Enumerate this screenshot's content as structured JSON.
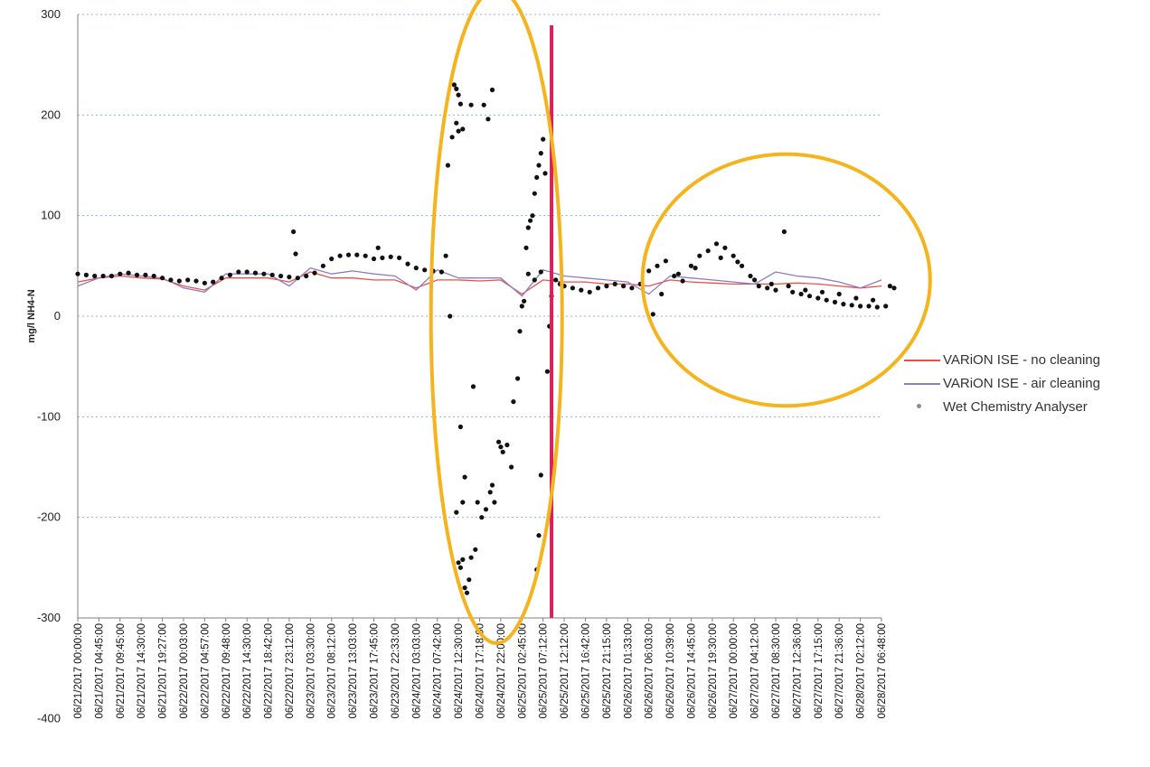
{
  "chart_data": {
    "type": "line",
    "title": "",
    "xlabel": "",
    "ylabel": "mg/l NH4-N",
    "ylim": [
      -400,
      300
    ],
    "plot_ylim": [
      -300,
      300
    ],
    "yticks": [
      300,
      200,
      100,
      0,
      -100,
      -200,
      -300,
      -400
    ],
    "grid": true,
    "legend_position": "right",
    "categories": [
      "06/21/2017 00:00:00",
      "06/21/2017 04:45:00",
      "06/21/2017 09:45:00",
      "06/21/2017 14:30:00",
      "06/21/2017 19:27:00",
      "06/22/2017 00:03:00",
      "06/22/2017 04:57:00",
      "06/22/2017 09:48:00",
      "06/22/2017 14:30:00",
      "06/22/2017 18:42:00",
      "06/22/2017 23:12:00",
      "06/23/2017 03:30:00",
      "06/23/2017 08:12:00",
      "06/23/2017 13:03:00",
      "06/23/2017 17:45:00",
      "06/23/2017 22:33:00",
      "06/24/2017 03:03:00",
      "06/24/2017 07:42:00",
      "06/24/2017 12:30:00",
      "06/24/2017 17:18:00",
      "06/24/2017 22:00:00",
      "06/25/2017 02:45:00",
      "06/25/2017 07:12:00",
      "06/25/2017 12:12:00",
      "06/25/2017 16:42:00",
      "06/25/2017 21:15:00",
      "06/26/2017 01:33:00",
      "06/26/2017 06:03:00",
      "06/26/2017 10:39:00",
      "06/26/2017 14:45:00",
      "06/26/2017 19:30:00",
      "06/27/2017 00:00:00",
      "06/27/2017 04:12:00",
      "06/27/2017 08:30:00",
      "06/27/2017 12:36:00",
      "06/27/2017 17:15:00",
      "06/27/2017 21:36:00",
      "06/28/2017 02:12:00",
      "06/28/2017 06:48:00"
    ],
    "series": [
      {
        "name": "VARiON ISE - no cleaning",
        "type": "line",
        "color": "#e8514a",
        "values": [
          34,
          38,
          40,
          38,
          37,
          30,
          26,
          38,
          38,
          38,
          34,
          44,
          38,
          38,
          36,
          36,
          28,
          36,
          36,
          35,
          36,
          22,
          36,
          34,
          34,
          32,
          32,
          30,
          36,
          34,
          33,
          32,
          32,
          32,
          33,
          32,
          30,
          28,
          30
        ]
      },
      {
        "name": "VARiON ISE - air cleaning",
        "type": "line",
        "color": "#8e7cc3",
        "values": [
          30,
          38,
          42,
          40,
          38,
          28,
          24,
          42,
          42,
          42,
          30,
          48,
          42,
          45,
          42,
          40,
          26,
          46,
          38,
          38,
          38,
          20,
          46,
          40,
          38,
          36,
          34,
          22,
          40,
          38,
          36,
          34,
          32,
          44,
          40,
          38,
          34,
          28,
          36
        ]
      },
      {
        "name": "Wet Chemistry Analyser",
        "type": "scatter",
        "color": "#111111",
        "points": [
          [
            0,
            42
          ],
          [
            0.4,
            41
          ],
          [
            0.8,
            40
          ],
          [
            1.2,
            40
          ],
          [
            1.6,
            40
          ],
          [
            2.0,
            42
          ],
          [
            2.4,
            43
          ],
          [
            2.8,
            41
          ],
          [
            3.2,
            41
          ],
          [
            3.6,
            40
          ],
          [
            4.0,
            38
          ],
          [
            4.4,
            36
          ],
          [
            4.8,
            35
          ],
          [
            5.2,
            36
          ],
          [
            5.6,
            35
          ],
          [
            6.0,
            33
          ],
          [
            6.4,
            34
          ],
          [
            6.8,
            38
          ],
          [
            7.2,
            41
          ],
          [
            7.6,
            44
          ],
          [
            8.0,
            44
          ],
          [
            8.4,
            43
          ],
          [
            8.8,
            42
          ],
          [
            9.2,
            41
          ],
          [
            9.6,
            40
          ],
          [
            10.0,
            39
          ],
          [
            10.4,
            38
          ],
          [
            10.8,
            40
          ],
          [
            11.2,
            43
          ],
          [
            11.6,
            50
          ],
          [
            12.0,
            57
          ],
          [
            12.4,
            60
          ],
          [
            12.8,
            61
          ],
          [
            13.2,
            61
          ],
          [
            13.6,
            60
          ],
          [
            14.0,
            57
          ],
          [
            14.4,
            58
          ],
          [
            14.8,
            59
          ],
          [
            15.2,
            58
          ],
          [
            15.6,
            52
          ],
          [
            16.0,
            48
          ],
          [
            16.4,
            46
          ],
          [
            16.8,
            45
          ],
          [
            17.2,
            44
          ],
          [
            10.2,
            84
          ],
          [
            10.3,
            62
          ],
          [
            14.2,
            68
          ],
          [
            17.4,
            60
          ],
          [
            17.6,
            0
          ],
          [
            17.8,
            230
          ],
          [
            17.9,
            226
          ],
          [
            18.0,
            220
          ],
          [
            18.1,
            211
          ],
          [
            17.5,
            150
          ],
          [
            17.7,
            178
          ],
          [
            17.9,
            192
          ],
          [
            18.0,
            184
          ],
          [
            18.2,
            186
          ],
          [
            18.6,
            210
          ],
          [
            19.2,
            210
          ],
          [
            19.4,
            196
          ],
          [
            19.6,
            225
          ],
          [
            18.1,
            -110
          ],
          [
            18.3,
            -160
          ],
          [
            18.2,
            -185
          ],
          [
            17.9,
            -195
          ],
          [
            18.0,
            -245
          ],
          [
            18.1,
            -250
          ],
          [
            18.2,
            -242
          ],
          [
            18.3,
            -270
          ],
          [
            18.4,
            -275
          ],
          [
            18.5,
            -262
          ],
          [
            18.6,
            -240
          ],
          [
            18.8,
            -232
          ],
          [
            18.7,
            -70
          ],
          [
            18.9,
            -185
          ],
          [
            19.1,
            -200
          ],
          [
            19.3,
            -192
          ],
          [
            19.5,
            -175
          ],
          [
            19.6,
            -168
          ],
          [
            19.7,
            -185
          ],
          [
            19.9,
            -125
          ],
          [
            20.0,
            -130
          ],
          [
            20.1,
            -135
          ],
          [
            20.3,
            -128
          ],
          [
            20.5,
            -150
          ],
          [
            20.6,
            -85
          ],
          [
            20.8,
            -62
          ],
          [
            20.9,
            -15
          ],
          [
            21.0,
            10
          ],
          [
            21.1,
            15
          ],
          [
            21.2,
            68
          ],
          [
            21.3,
            88
          ],
          [
            21.4,
            95
          ],
          [
            21.5,
            100
          ],
          [
            21.6,
            122
          ],
          [
            21.7,
            138
          ],
          [
            21.8,
            150
          ],
          [
            21.9,
            162
          ],
          [
            22.0,
            176
          ],
          [
            22.1,
            142
          ],
          [
            21.9,
            -158
          ],
          [
            21.8,
            -218
          ],
          [
            21.7,
            -252
          ],
          [
            22.2,
            -55
          ],
          [
            22.3,
            -10
          ],
          [
            22.4,
            20
          ],
          [
            21.3,
            42
          ],
          [
            21.6,
            36
          ],
          [
            21.9,
            44
          ],
          [
            22.6,
            36
          ],
          [
            22.8,
            32
          ],
          [
            23.0,
            30
          ],
          [
            23.4,
            28
          ],
          [
            23.8,
            26
          ],
          [
            24.2,
            24
          ],
          [
            24.6,
            28
          ],
          [
            25.0,
            30
          ],
          [
            25.4,
            32
          ],
          [
            25.8,
            30
          ],
          [
            26.2,
            28
          ],
          [
            26.6,
            32
          ],
          [
            27.0,
            45
          ],
          [
            27.4,
            50
          ],
          [
            27.8,
            55
          ],
          [
            28.2,
            40
          ],
          [
            28.6,
            35
          ],
          [
            29.0,
            50
          ],
          [
            29.4,
            60
          ],
          [
            29.8,
            65
          ],
          [
            30.2,
            72
          ],
          [
            30.6,
            68
          ],
          [
            31.0,
            60
          ],
          [
            31.4,
            50
          ],
          [
            31.8,
            40
          ],
          [
            32.2,
            30
          ],
          [
            32.6,
            28
          ],
          [
            33.0,
            26
          ],
          [
            33.4,
            84
          ],
          [
            33.8,
            24
          ],
          [
            34.2,
            22
          ],
          [
            34.6,
            20
          ],
          [
            35.0,
            18
          ],
          [
            35.4,
            16
          ],
          [
            35.8,
            14
          ],
          [
            36.2,
            12
          ],
          [
            36.6,
            11
          ],
          [
            37.0,
            10
          ],
          [
            37.4,
            10
          ],
          [
            37.8,
            9
          ],
          [
            38.2,
            10
          ],
          [
            38.6,
            28
          ],
          [
            27.2,
            2
          ],
          [
            27.6,
            22
          ],
          [
            28.4,
            42
          ],
          [
            29.2,
            48
          ],
          [
            30.4,
            58
          ],
          [
            31.2,
            54
          ],
          [
            32.0,
            36
          ],
          [
            32.8,
            32
          ],
          [
            33.6,
            30
          ],
          [
            34.4,
            26
          ],
          [
            35.2,
            24
          ],
          [
            36.0,
            22
          ],
          [
            36.8,
            18
          ],
          [
            37.6,
            16
          ],
          [
            38.4,
            30
          ]
        ]
      }
    ],
    "annotations": [
      {
        "type": "vertical_line",
        "x": 22.4,
        "color": "#d6235a"
      },
      {
        "type": "ellipse",
        "x_center": 19.8,
        "y_center": 0,
        "x_radius": 3.1,
        "y_radius": 300,
        "color": "#f5b31d"
      },
      {
        "type": "ellipse",
        "x_center": 33.5,
        "y_center": 36,
        "x_radius": 6.8,
        "y_radius": 100,
        "color": "#f5b31d"
      }
    ]
  },
  "legend": {
    "items": [
      {
        "label": "VARiON ISE - no cleaning",
        "kind": "line",
        "color": "#e8514a"
      },
      {
        "label": "VARiON ISE - air cleaning",
        "kind": "line",
        "color": "#8e7cc3"
      },
      {
        "label": "Wet Chemistry Analyser",
        "kind": "dot",
        "color": "#8c8c8c"
      }
    ]
  },
  "colors": {
    "grid": "#8fb1e0",
    "axis": "#7f7f7f",
    "marker": "#111111"
  }
}
